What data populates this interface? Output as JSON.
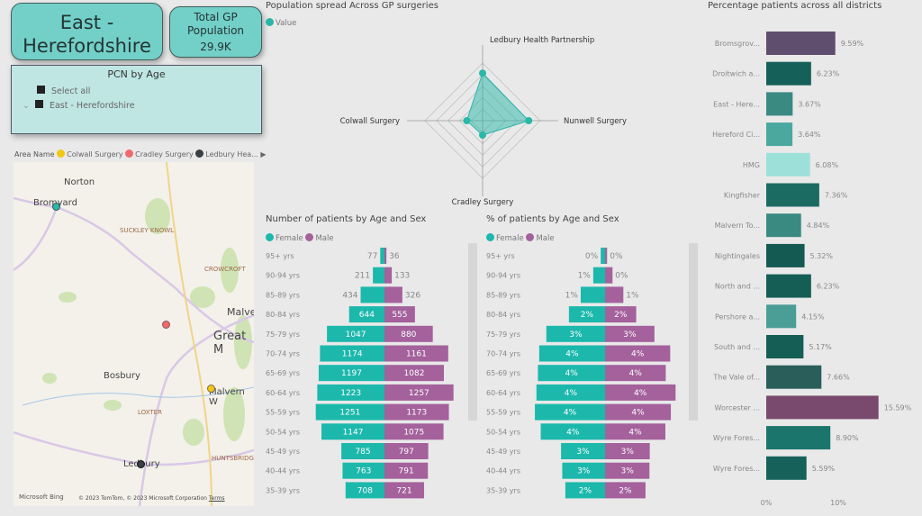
{
  "header": {
    "title": "East - Herefordshire",
    "kpi_label": "Total GP Population",
    "kpi_value": "29.9K"
  },
  "slicer": {
    "title": "PCN by Age",
    "items": [
      "Select all",
      "East - Herefordshire"
    ]
  },
  "map": {
    "legend_title": "Area Name",
    "legend": [
      {
        "name": "Colwall Surgery",
        "color": "#f2c811"
      },
      {
        "name": "Cradley Surgery",
        "color": "#f06a6a"
      },
      {
        "name": "Ledbury Hea...",
        "color": "#3a3f44"
      }
    ],
    "places": [
      "Norton",
      "Bromyard",
      "SUCKLEY KNOWL",
      "CROWCROFT",
      "Malve",
      "Great M",
      "Bosbury",
      "Malvern W",
      "LOXTER",
      "HUNTSBRIDGE",
      "Ledbury"
    ],
    "attribution": "© 2023 TomTom, © 2023 Microsoft Corporation",
    "terms": "Terms",
    "brand": "Microsoft Bing"
  },
  "chart_data": [
    {
      "type": "radar",
      "title": "Population spread Across GP surgeries",
      "legend": [
        "Value"
      ],
      "categories": [
        "Ledbury Health Partnership",
        "Nunwell Surgery",
        "Cradley Surgery",
        "Colwall Surgery"
      ],
      "values": [
        0.66,
        0.64,
        0.2,
        0.22
      ],
      "color": "#2ab7a9"
    },
    {
      "type": "bar",
      "orientation": "pyramid",
      "title": "Number of patients by Age and Sex",
      "categories": [
        "95+ yrs",
        "90-94 yrs",
        "85-89 yrs",
        "80-84 yrs",
        "75-79 yrs",
        "70-74 yrs",
        "65-69 yrs",
        "60-64 yrs",
        "55-59 yrs",
        "50-54 yrs",
        "45-49 yrs",
        "40-44 yrs",
        "35-39 yrs"
      ],
      "series": [
        {
          "name": "Female",
          "color": "#1cb8ac",
          "values": [
            77,
            211,
            434,
            644,
            1047,
            1174,
            1197,
            1223,
            1251,
            1147,
            785,
            763,
            708
          ]
        },
        {
          "name": "Male",
          "color": "#a4619c",
          "values": [
            36,
            133,
            326,
            555,
            880,
            1161,
            1082,
            1257,
            1173,
            1075,
            797,
            791,
            721
          ]
        }
      ]
    },
    {
      "type": "bar",
      "orientation": "pyramid",
      "title": "% of patients by Age and Sex",
      "categories": [
        "95+ yrs",
        "90-94 yrs",
        "85-89 yrs",
        "80-84 yrs",
        "75-79 yrs",
        "70-74 yrs",
        "65-69 yrs",
        "60-64 yrs",
        "55-59 yrs",
        "50-54 yrs",
        "45-49 yrs",
        "40-44 yrs",
        "35-39 yrs"
      ],
      "series": [
        {
          "name": "Female",
          "color": "#1cb8ac",
          "values": [
            0,
            1,
            1,
            2,
            3,
            4,
            4,
            4,
            4,
            4,
            3,
            3,
            2
          ]
        },
        {
          "name": "Male",
          "color": "#a4619c",
          "values": [
            0,
            0,
            1,
            2,
            3,
            4,
            4,
            4,
            4,
            4,
            3,
            3,
            2
          ]
        }
      ]
    },
    {
      "type": "bar",
      "orientation": "horizontal",
      "title": "Percentage patients across all districts",
      "xticks": [
        "0%",
        "10%"
      ],
      "xlim": [
        0,
        16
      ],
      "categories": [
        "Bromsgrov...",
        "Droitwich a...",
        "East - Here...",
        "Hereford Ci...",
        "HMG",
        "Kingfisher",
        "Malvern To...",
        "Nightingales",
        "North and ...",
        "Pershore a...",
        "South and ...",
        "The Vale of...",
        "Worcester ...",
        "Wyre Fores...",
        "Wyre Fores..."
      ],
      "values": [
        9.59,
        6.23,
        3.67,
        3.64,
        6.08,
        7.36,
        4.84,
        5.32,
        6.23,
        4.15,
        5.17,
        7.66,
        15.59,
        8.9,
        5.59
      ],
      "labels": [
        "9.59%",
        "6.23%",
        "3.67%",
        "3.64%",
        "6.08%",
        "7.36%",
        "4.84%",
        "5.32%",
        "6.23%",
        "4.15%",
        "5.17%",
        "7.66%",
        "15.59%",
        "8.90%",
        "5.59%"
      ],
      "colors": [
        "#5f4e6e",
        "#16605a",
        "#3a8a82",
        "#4aa89f",
        "#9de0da",
        "#1b6b63",
        "#3a8a82",
        "#145a52",
        "#155e56",
        "#4a9e96",
        "#155e56",
        "#2a5e5a",
        "#7a4a6e",
        "#1b756c",
        "#16625a"
      ]
    }
  ]
}
